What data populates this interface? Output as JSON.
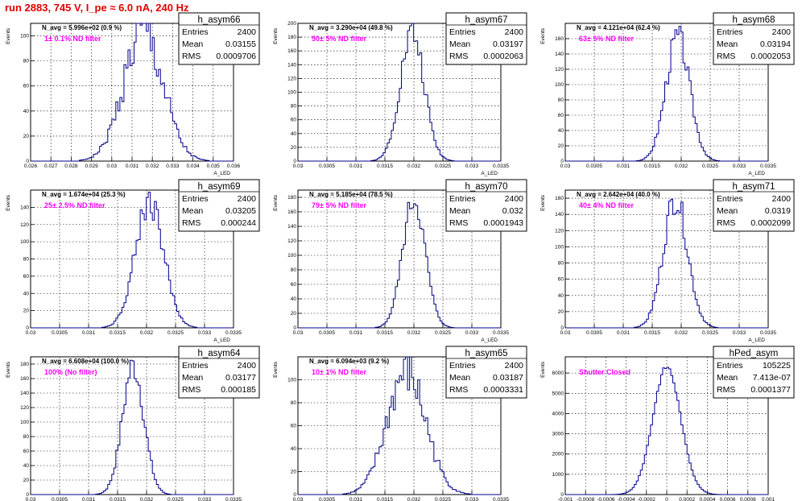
{
  "title": "run 2883,   745 V, I_pe ≈ 6.0 nA, 240 Hz",
  "stats_labels": [
    "Entries",
    "Mean",
    "RMS"
  ],
  "chart_data": [
    {
      "type": "histogram",
      "name": "h_asym66",
      "ylabel": "Events",
      "xlabel": "A_LED",
      "navg_text": "N_avg = 5.996e+02 (0.9 %)",
      "filter_text": "1± 0.1% ND filter",
      "stats": {
        "entries": "2400",
        "mean": "0.03155",
        "rms": "0.0009706"
      },
      "xlim": [
        0.026,
        0.036
      ],
      "ylim": [
        0,
        110
      ],
      "xticks": [
        0.026,
        0.027,
        0.028,
        0.029,
        0.03,
        0.031,
        0.032,
        0.033,
        0.034,
        0.035,
        0.036
      ],
      "yticks": [
        0,
        20,
        40,
        60,
        80,
        100
      ],
      "nbins": 100,
      "hist": {
        "mean": 0.03155,
        "rms": 0.0009706,
        "peak": 102,
        "seed": 1,
        "noise": 0.22
      }
    },
    {
      "type": "histogram",
      "name": "h_asym67",
      "ylabel": "Events",
      "xlabel": "A_LED",
      "navg_text": "N_avg = 3.290e+04 (49.8 %)",
      "filter_text": "50± 5% ND filter",
      "stats": {
        "entries": "2400",
        "mean": "0.03197",
        "rms": "0.0002063"
      },
      "xlim": [
        0.03,
        0.0335
      ],
      "ylim": [
        0,
        200
      ],
      "xticks": [
        0.03,
        0.0305,
        0.031,
        0.0315,
        0.032,
        0.0325,
        0.033,
        0.0335
      ],
      "yticks": [
        0,
        20,
        40,
        60,
        80,
        100,
        120,
        140,
        160,
        180,
        200
      ],
      "nbins": 100,
      "hist": {
        "mean": 0.03197,
        "rms": 0.0002063,
        "peak": 188,
        "seed": 2,
        "noise": 0.12
      }
    },
    {
      "type": "histogram",
      "name": "h_asym68",
      "ylabel": "Events",
      "xlabel": "A_LED",
      "navg_text": "N_avg = 4.121e+04 (62.4 %)",
      "filter_text": "63± 5% ND filter",
      "stats": {
        "entries": "2400",
        "mean": "0.03194",
        "rms": "0.0002053"
      },
      "xlim": [
        0.03,
        0.0335
      ],
      "ylim": [
        0,
        180
      ],
      "xticks": [
        0.03,
        0.0305,
        0.031,
        0.0315,
        0.032,
        0.0325,
        0.033,
        0.0335
      ],
      "yticks": [
        0,
        20,
        40,
        60,
        80,
        100,
        120,
        140,
        160
      ],
      "nbins": 100,
      "hist": {
        "mean": 0.03194,
        "rms": 0.0002053,
        "peak": 162,
        "seed": 3,
        "noise": 0.12
      }
    },
    {
      "type": "histogram",
      "name": "h_asym69",
      "ylabel": "Events",
      "xlabel": "A_LED",
      "navg_text": "N_avg = 1.674e+04 (25.3 %)",
      "filter_text": "25± 2.5% ND filter",
      "stats": {
        "entries": "2400",
        "mean": "0.03205",
        "rms": "0.000244"
      },
      "xlim": [
        0.03,
        0.0335
      ],
      "ylim": [
        0,
        160
      ],
      "xticks": [
        0.03,
        0.0305,
        0.031,
        0.0315,
        0.032,
        0.0325,
        0.033,
        0.0335
      ],
      "yticks": [
        0,
        20,
        40,
        60,
        80,
        100,
        120,
        140
      ],
      "nbins": 100,
      "hist": {
        "mean": 0.03205,
        "rms": 0.000244,
        "peak": 148,
        "seed": 4,
        "noise": 0.13
      }
    },
    {
      "type": "histogram",
      "name": "h_asym70",
      "ylabel": "Events",
      "xlabel": "A_LED",
      "navg_text": "N_avg = 5.185e+04 (78.5 %)",
      "filter_text": "79± 5% ND filter",
      "stats": {
        "entries": "2400",
        "mean": "0.032",
        "rms": "0.0001943"
      },
      "xlim": [
        0.03,
        0.0335
      ],
      "ylim": [
        0,
        190
      ],
      "xticks": [
        0.03,
        0.0305,
        0.031,
        0.0315,
        0.032,
        0.0325,
        0.033,
        0.0335
      ],
      "yticks": [
        0,
        20,
        40,
        60,
        80,
        100,
        120,
        140,
        160,
        180
      ],
      "nbins": 100,
      "hist": {
        "mean": 0.032,
        "rms": 0.0001943,
        "peak": 178,
        "seed": 5,
        "noise": 0.1
      }
    },
    {
      "type": "histogram",
      "name": "h_asym71",
      "ylabel": "Events",
      "xlabel": "A_LED",
      "navg_text": "N_avg = 2.642e+04 (40.0 %)",
      "filter_text": "40± 4% ND filter",
      "stats": {
        "entries": "2400",
        "mean": "0.0319",
        "rms": "0.0002099"
      },
      "xlim": [
        0.03,
        0.0335
      ],
      "ylim": [
        0,
        170
      ],
      "xticks": [
        0.03,
        0.0305,
        0.031,
        0.0315,
        0.032,
        0.0325,
        0.033,
        0.0335
      ],
      "yticks": [
        0,
        20,
        40,
        60,
        80,
        100,
        120,
        140,
        160
      ],
      "nbins": 100,
      "hist": {
        "mean": 0.0319,
        "rms": 0.0002099,
        "peak": 160,
        "seed": 6,
        "noise": 0.12
      }
    },
    {
      "type": "histogram",
      "name": "h_asym64",
      "ylabel": "Events",
      "xlabel": "A_LED",
      "navg_text": "N_avg = 6.608e+04 (100.0 %)",
      "filter_text": "100% (No filter)",
      "stats": {
        "entries": "2400",
        "mean": "0.03177",
        "rms": "0.000185"
      },
      "xlim": [
        0.03,
        0.0335
      ],
      "ylim": [
        0,
        190
      ],
      "xticks": [
        0.03,
        0.0305,
        0.031,
        0.0315,
        0.032,
        0.0325,
        0.033,
        0.0335
      ],
      "yticks": [
        0,
        20,
        40,
        60,
        80,
        100,
        120,
        140,
        160,
        180
      ],
      "nbins": 100,
      "hist": {
        "mean": 0.03177,
        "rms": 0.000185,
        "peak": 178,
        "seed": 7,
        "noise": 0.12
      }
    },
    {
      "type": "histogram",
      "name": "h_asym65",
      "ylabel": "Events",
      "xlabel": "A_LED",
      "navg_text": "N_avg = 6.094e+03 (9.2 %)",
      "filter_text": "10± 1% ND filter",
      "stats": {
        "entries": "2400",
        "mean": "0.03187",
        "rms": "0.0003331"
      },
      "xlim": [
        0.03,
        0.0335
      ],
      "ylim": [
        0,
        120
      ],
      "xticks": [
        0.03,
        0.0305,
        0.031,
        0.0315,
        0.032,
        0.0325,
        0.033,
        0.0335
      ],
      "yticks": [
        0,
        20,
        40,
        60,
        80,
        100
      ],
      "nbins": 100,
      "hist": {
        "mean": 0.03187,
        "rms": 0.0003331,
        "peak": 106,
        "seed": 8,
        "noise": 0.2
      }
    },
    {
      "type": "histogram",
      "name": "hPed_asym",
      "ylabel": "Events",
      "xlabel": "",
      "navg_text": "",
      "filter_text": "Shutter Closed",
      "stats": {
        "entries": "105225",
        "mean": "7.413e-07",
        "rms": "0.0001377"
      },
      "xlim": [
        -0.001,
        0.001
      ],
      "ylim": [
        0,
        6800
      ],
      "xticks": [
        -0.001,
        -0.0008,
        -0.0006,
        -0.0004,
        -0.0002,
        0,
        0.0002,
        0.0004,
        0.0006,
        0.0008,
        0.001
      ],
      "yticks": [
        0,
        1000,
        2000,
        3000,
        4000,
        5000,
        6000
      ],
      "nbins": 100,
      "hist": {
        "mean": 7.413e-07,
        "rms": 0.0001377,
        "peak": 6300,
        "seed": 9,
        "noise": 0.02
      }
    }
  ]
}
